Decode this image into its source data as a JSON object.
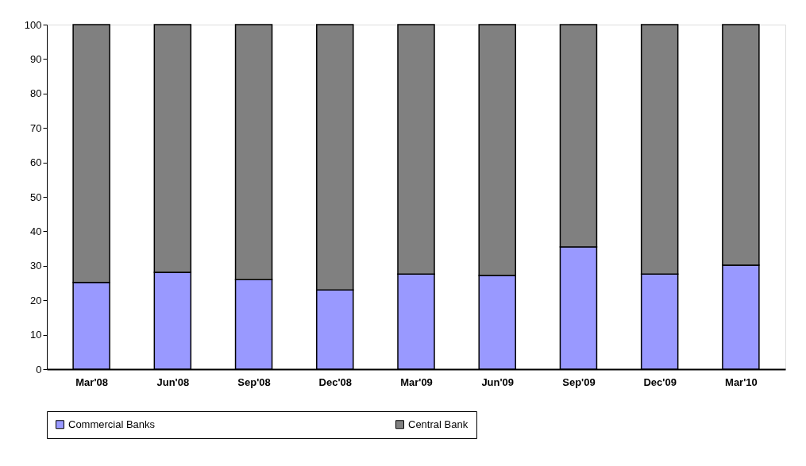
{
  "chart_data": {
    "type": "bar",
    "stacked": true,
    "categories": [
      "Mar'08",
      "Jun'08",
      "Sep'08",
      "Dec'08",
      "Mar'09",
      "Jun'09",
      "Sep'09",
      "Dec'09",
      "Mar'10"
    ],
    "series": [
      {
        "name": "Commercial Banks",
        "color": "#9999ff",
        "values": [
          25.2,
          28.1,
          26.0,
          23.0,
          27.6,
          27.2,
          35.5,
          27.6,
          30.2
        ]
      },
      {
        "name": "Central Bank",
        "color": "#808080",
        "values": [
          74.8,
          71.9,
          74.0,
          77.0,
          72.4,
          72.8,
          64.5,
          72.4,
          69.8
        ]
      }
    ],
    "ylim": [
      0,
      100
    ],
    "yticks": [
      0,
      10,
      20,
      30,
      40,
      50,
      60,
      70,
      80,
      90,
      100
    ],
    "grid": false,
    "legend": "bottom"
  }
}
